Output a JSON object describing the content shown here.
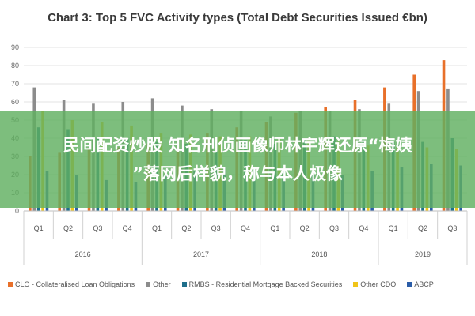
{
  "chart_data": {
    "type": "bar",
    "title": "Chart 3: Top 5 FVC Activity types (Total Debt Securities Issued €bn)",
    "categories": [
      "Q1",
      "Q2",
      "Q3",
      "Q4",
      "Q1",
      "Q2",
      "Q3",
      "Q4",
      "Q1",
      "Q2",
      "Q3",
      "Q4",
      "Q1",
      "Q2",
      "Q3"
    ],
    "years": [
      {
        "label": "2016",
        "start": 0,
        "count": 4
      },
      {
        "label": "2017",
        "start": 4,
        "count": 4
      },
      {
        "label": "2018",
        "start": 8,
        "count": 4
      },
      {
        "label": "2019",
        "start": 12,
        "count": 3
      }
    ],
    "ylim": [
      0,
      90
    ],
    "yticks": [
      "0",
      "10",
      "20",
      "30",
      "40",
      "50",
      "60",
      "70",
      "80",
      "90"
    ],
    "grid": true,
    "legend_position": "bottom",
    "series": [
      {
        "name": "CLO - Collateralised Loan Obligations",
        "color": "#e8702a",
        "values": [
          30,
          32,
          34,
          35,
          37,
          40,
          43,
          46,
          49,
          54,
          57,
          61,
          68,
          75,
          83
        ]
      },
      {
        "name": "Other",
        "color": "#8c8c8c",
        "values": [
          68,
          61,
          59,
          60,
          62,
          58,
          56,
          55,
          52,
          55,
          55,
          56,
          59,
          66,
          67
        ]
      },
      {
        "name": "RMBS - Residential Mortgage Backed Securities",
        "color": "#1f6f8b",
        "values": [
          46,
          45,
          40,
          40,
          38,
          37,
          38,
          39,
          37,
          39,
          41,
          39,
          38,
          38,
          40
        ]
      },
      {
        "name": "Other CDO",
        "color": "#f0c419",
        "values": [
          55,
          50,
          49,
          47,
          43,
          42,
          41,
          41,
          40,
          40,
          38,
          36,
          35,
          35,
          34
        ]
      },
      {
        "name": "ABCP",
        "color": "#2b5da8",
        "values": [
          22,
          20,
          17,
          16,
          20,
          22,
          24,
          23,
          22,
          20,
          20,
          22,
          24,
          26,
          25
        ]
      }
    ]
  },
  "overlay_text": {
    "line1": "民间配资炒股 知名刑侦画像师林宇辉还原“梅姨",
    "line2": "”落网后样貌，称与本人极像"
  }
}
